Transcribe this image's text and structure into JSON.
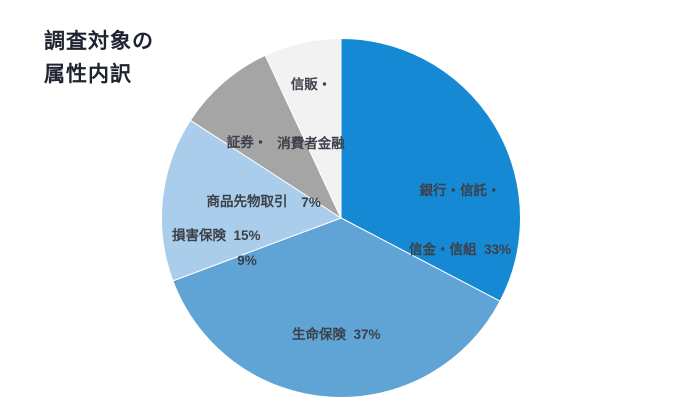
{
  "title_lines": [
    "調査対象の",
    "属性内訳"
  ],
  "chart_data": {
    "type": "pie",
    "title": "調査対象の属性内訳",
    "legend_position": "none",
    "start_angle_deg": -90,
    "direction": "clockwise",
    "slices": [
      {
        "slug": "bank-trust-shinkin",
        "label": "銀行・信託・信金・信組",
        "value": 33,
        "pct_text": "33%",
        "color": "#1689d4",
        "label_lines": [
          "銀行・信託・",
          "信金・信組  33%"
        ]
      },
      {
        "slug": "life-insurance",
        "label": "生命保険",
        "value": 37,
        "pct_text": "37%",
        "color": "#5fa4d4",
        "label_lines": [
          "生命保険  37%"
        ]
      },
      {
        "slug": "nonlife-insurance",
        "label": "損害保険",
        "value": 15,
        "pct_text": "15%",
        "color": "#a9cdea",
        "label_lines": [
          "損害保険  15%"
        ]
      },
      {
        "slug": "securities-futures",
        "label": "証券・商品先物取引",
        "value": 9,
        "pct_text": "9%",
        "color": "#a5a5a5",
        "label_lines": [
          "証券・",
          "商品先物取引",
          "9%"
        ]
      },
      {
        "slug": "consumer-finance",
        "label": "信販・消費者金融",
        "value": 7,
        "pct_text": "7%",
        "color": "#f2f2f2",
        "label_lines": [
          "信販・",
          "消費者金融",
          "7%"
        ]
      }
    ]
  }
}
